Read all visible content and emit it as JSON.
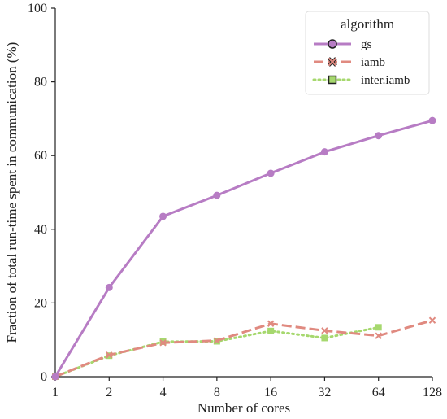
{
  "chart_data": {
    "type": "line",
    "title": "",
    "xlabel": "Number of cores",
    "ylabel": "Fraction of total run-time spent in communication (%)",
    "x_scale": "log2",
    "x": [
      1,
      2,
      4,
      8,
      16,
      32,
      64,
      128
    ],
    "xticks": [
      "1",
      "2",
      "4",
      "8",
      "16",
      "32",
      "64",
      "128"
    ],
    "yticks": [
      "0",
      "20",
      "40",
      "60",
      "80",
      "100"
    ],
    "ylim": [
      0,
      100
    ],
    "grid": false,
    "legend": {
      "title": "algorithm",
      "placement": "top-right"
    },
    "series": [
      {
        "name": "gs",
        "color": "#b77cc4",
        "line_style": "solid",
        "marker": "circle",
        "x": [
          1,
          2,
          4,
          8,
          16,
          32,
          64,
          128
        ],
        "values": [
          0,
          24.2,
          43.5,
          49.2,
          55.2,
          61.0,
          65.4,
          69.5
        ]
      },
      {
        "name": "iamb",
        "color": "#e08a80",
        "line_style": "dashed",
        "marker": "x",
        "x": [
          1,
          2,
          4,
          8,
          16,
          32,
          64,
          128
        ],
        "values": [
          0,
          5.9,
          9.2,
          9.8,
          14.4,
          12.5,
          11.1,
          15.3
        ]
      },
      {
        "name": "inter.iamb",
        "color": "#a6d86e",
        "line_style": "dotted",
        "marker": "square",
        "x": [
          1,
          2,
          4,
          8,
          16,
          32,
          64
        ],
        "values": [
          0,
          5.7,
          9.5,
          9.6,
          12.4,
          10.5,
          13.4
        ]
      }
    ]
  }
}
